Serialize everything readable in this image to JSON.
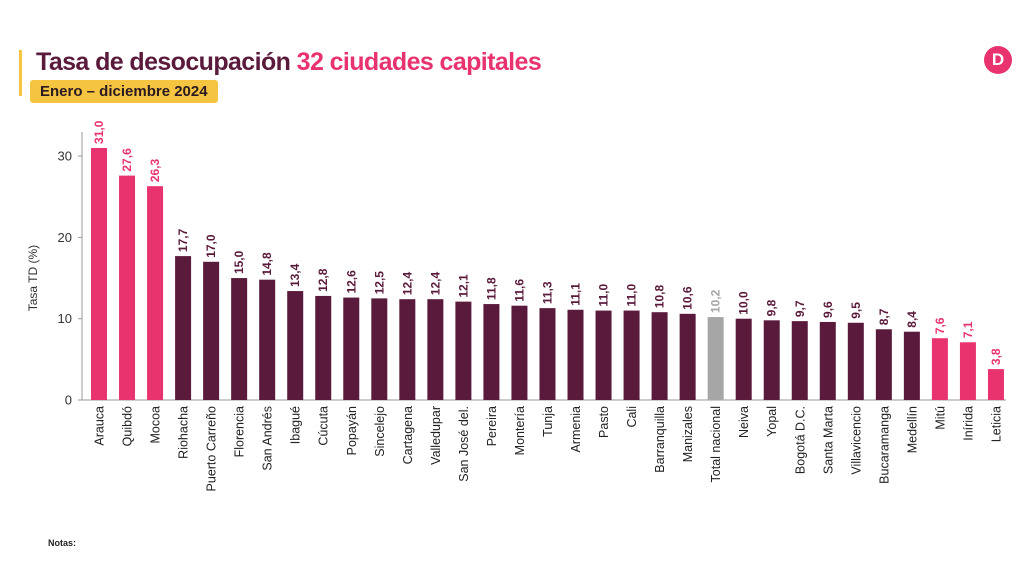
{
  "header": {
    "title_part1": "Tasa de desocupación",
    "title_part2": "32 ciudades capitales",
    "subtitle": "Enero – diciembre 2024",
    "logo_letter": "D"
  },
  "footer": {
    "notes": "Notas:"
  },
  "colors": {
    "dark": "#5a1a3c",
    "pink": "#e8336e",
    "gray": "#a6a6a6",
    "accent_yellow": "#f5c542"
  },
  "chart_data": {
    "type": "bar",
    "title": "Tasa de desocupación 32 ciudades capitales",
    "subtitle": "Enero – diciembre 2024",
    "xlabel": "",
    "ylabel": "Tasa TD (%)",
    "ylim": [
      0,
      33
    ],
    "yticks": [
      0,
      10,
      20,
      30
    ],
    "grid": false,
    "legend": "none",
    "categories": [
      "Arauca",
      "Quibdó",
      "Mocoa",
      "Riohacha",
      "Puerto Carreño",
      "Florencia",
      "San Andrés",
      "Ibagué",
      "Cúcuta",
      "Popayán",
      "Sincelejo",
      "Cartagena",
      "Valledupar",
      "San José del.",
      "Pereira",
      "Montería",
      "Tunja",
      "Armenia",
      "Pasto",
      "Cali",
      "Barranquilla",
      "Manizales",
      "Total nacional",
      "Neiva",
      "Yopal",
      "Bogotá D.C.",
      "Santa Marta",
      "Villavicencio",
      "Bucaramanga",
      "Medellín",
      "Mitú",
      "Inírida",
      "Leticia"
    ],
    "values": [
      31.0,
      27.6,
      26.3,
      17.7,
      17.0,
      15.0,
      14.8,
      13.4,
      12.8,
      12.6,
      12.5,
      12.4,
      12.4,
      12.1,
      11.8,
      11.6,
      11.3,
      11.1,
      11.0,
      11.0,
      10.8,
      10.6,
      10.2,
      10.0,
      9.8,
      9.7,
      9.6,
      9.5,
      8.7,
      8.4,
      7.6,
      7.1,
      3.8
    ],
    "value_labels": [
      "31,0",
      "27,6",
      "26,3",
      "17,7",
      "17,0",
      "15,0",
      "14,8",
      "13,4",
      "12,8",
      "12,6",
      "12,5",
      "12,4",
      "12,4",
      "12,1",
      "11,8",
      "11,6",
      "11,3",
      "11,1",
      "11,0",
      "11,0",
      "10,8",
      "10,6",
      "10,2",
      "10,0",
      "9,8",
      "9,7",
      "9,6",
      "9,5",
      "8,7",
      "8,4",
      "7,6",
      "7,1",
      "3,8"
    ],
    "bar_colors": [
      "pink",
      "pink",
      "pink",
      "dark",
      "dark",
      "dark",
      "dark",
      "dark",
      "dark",
      "dark",
      "dark",
      "dark",
      "dark",
      "dark",
      "dark",
      "dark",
      "dark",
      "dark",
      "dark",
      "dark",
      "dark",
      "dark",
      "gray",
      "dark",
      "dark",
      "dark",
      "dark",
      "dark",
      "dark",
      "dark",
      "pink",
      "pink",
      "pink"
    ]
  }
}
